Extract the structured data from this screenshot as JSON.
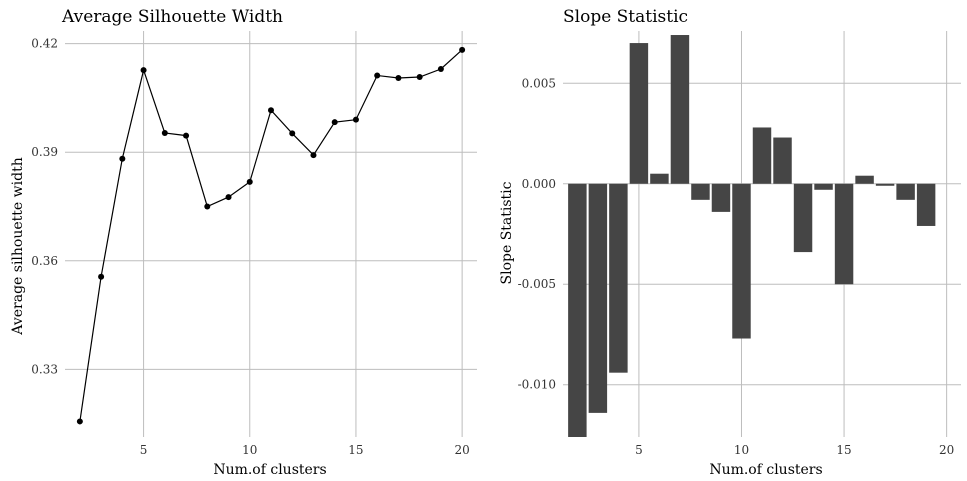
{
  "chart_data": [
    {
      "type": "line",
      "title": "Average Silhouette Width",
      "xlabel": "Num.of clusters",
      "ylabel": "Average silhouette width",
      "xlim": [
        1.3,
        20.7
      ],
      "ylim": [
        0.3113,
        0.4235
      ],
      "x_ticks": [
        5,
        10,
        15,
        20
      ],
      "y_ticks": [
        0.33,
        0.36,
        0.39,
        0.42
      ],
      "y_tick_labels": [
        "0.33",
        "0.36",
        "0.39",
        "0.42"
      ],
      "grid": true,
      "x": [
        2,
        3,
        4,
        5,
        6,
        7,
        8,
        9,
        10,
        11,
        12,
        13,
        14,
        15,
        16,
        17,
        18,
        19,
        20
      ],
      "y": [
        0.3156,
        0.3556,
        0.3882,
        0.4127,
        0.3953,
        0.3946,
        0.375,
        0.3776,
        0.3818,
        0.4016,
        0.3952,
        0.3892,
        0.3983,
        0.399,
        0.4112,
        0.4105,
        0.4108,
        0.413,
        0.4183
      ],
      "color": "#000000"
    },
    {
      "type": "bar",
      "title": "Slope Statistic",
      "xlabel": "Num.of clusters",
      "ylabel": "Slope Statistic",
      "xlim": [
        1.3,
        20.7
      ],
      "ylim": [
        -0.0126,
        0.0076
      ],
      "x_ticks": [
        5,
        10,
        15,
        20
      ],
      "y_ticks": [
        -0.01,
        -0.005,
        0.0,
        0.005
      ],
      "y_tick_labels": [
        "-0.010",
        "-0.005",
        "0.000",
        "0.005"
      ],
      "grid": true,
      "x": [
        2,
        3,
        4,
        5,
        6,
        7,
        8,
        9,
        10,
        11,
        12,
        13,
        14,
        15,
        16,
        17,
        18,
        19
      ],
      "values": [
        -0.0126,
        -0.0114,
        -0.0094,
        0.007,
        0.0005,
        0.0074,
        -0.0008,
        -0.0014,
        -0.0077,
        0.0028,
        0.0023,
        -0.0034,
        -0.0003,
        -0.005,
        0.0004,
        -0.0001,
        -0.0008,
        -0.0021
      ],
      "color": "#454545"
    }
  ]
}
